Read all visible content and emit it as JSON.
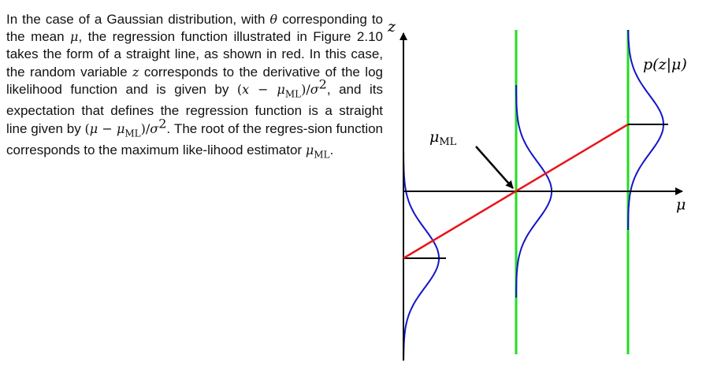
{
  "caption": {
    "s1": "In the case of a Gaussian distribution, with ",
    "theta": "θ",
    "s2": " corresponding to the mean ",
    "mu": "μ",
    "s3": ", the regression function illustrated in Figure 2.10 takes the form of a straight line, as shown in red.  In this case, the random variable ",
    "z": "z",
    "s4": " corresponds to the derivative of the log likelihood function and is given by ",
    "expr1": {
      "open": "(",
      "x": "x",
      "minus": " − ",
      "mu": "μ",
      "sub": "ML",
      "close": ")/",
      "sigma": "σ",
      "sup": "2"
    },
    "s5": ", and its expectation that defines the regression function is a straight line given by ",
    "expr2": {
      "open": "(",
      "mu": "μ",
      "minus": " − ",
      "mu2": "μ",
      "sub": "ML",
      "close": ")/",
      "sigma": "σ",
      "sup": "2"
    },
    "s6": ". The root of the regres-sion function corresponds to the maximum like-lihood estimator ",
    "mu_ml": {
      "mu": "μ",
      "sub": "ML"
    },
    "s7": "."
  },
  "figure": {
    "axis_z": "z",
    "axis_mu": "μ",
    "density_label": "p(z|μ)",
    "annotation": {
      "mu": "μ",
      "sub": "ML"
    },
    "colors": {
      "regression_line": "#e8151b",
      "gaussian_curves": "#1515c8",
      "vertical_lines": "#22dd22",
      "axes": "#000000"
    }
  }
}
